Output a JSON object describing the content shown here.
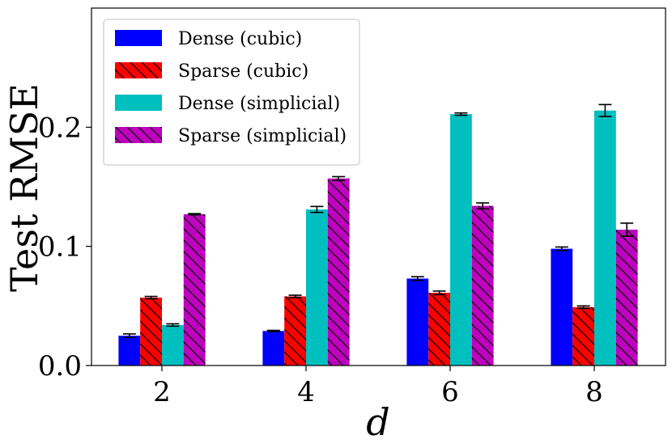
{
  "chart_data": {
    "type": "bar",
    "xlabel": "d",
    "ylabel": "Test RMSE",
    "categories": [
      "2",
      "4",
      "6",
      "8"
    ],
    "ylim": [
      0,
      0.3
    ],
    "yticks": [
      "0.0",
      "0.1",
      "0.2"
    ],
    "ytick_values": [
      0,
      0.1,
      0.2
    ],
    "grid": false,
    "legend_position": "top-left",
    "series": [
      {
        "name": "Dense (cubic)",
        "color": "#0000ff",
        "hatch": false,
        "values": [
          0.025,
          0.029,
          0.073,
          0.098
        ],
        "errors": [
          0.0015,
          0.0005,
          0.0015,
          0.0015
        ]
      },
      {
        "name": "Sparse (cubic)",
        "color": "#ff0000",
        "hatch": true,
        "values": [
          0.057,
          0.058,
          0.061,
          0.049
        ],
        "errors": [
          0.001,
          0.001,
          0.0015,
          0.001
        ]
      },
      {
        "name": "Dense (simplicial)",
        "color": "#00bfbf",
        "hatch": false,
        "values": [
          0.034,
          0.131,
          0.211,
          0.214
        ],
        "errors": [
          0.001,
          0.0025,
          0.001,
          0.005
        ]
      },
      {
        "name": "Sparse (simplicial)",
        "color": "#bf00bf",
        "hatch": true,
        "values": [
          0.127,
          0.157,
          0.134,
          0.114
        ],
        "errors": [
          0.0005,
          0.0015,
          0.0025,
          0.0055
        ]
      }
    ]
  }
}
